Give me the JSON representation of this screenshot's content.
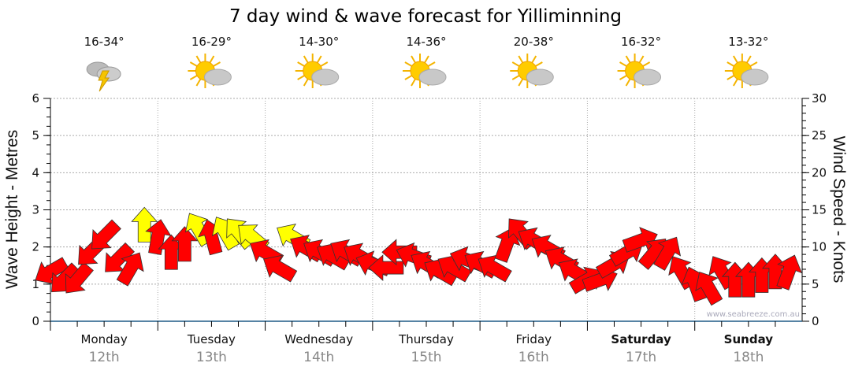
{
  "chart_data": {
    "type": "scatter",
    "title": "7 day wind & wave forecast for Yilliminning",
    "ylabel_left": "Wave Height - Metres",
    "ylabel_right": "Wind Speed - Knots",
    "ylim_left": [
      0,
      6
    ],
    "ylim_right": [
      0,
      30
    ],
    "left_ticks": [
      "0",
      "1",
      "2",
      "3",
      "4",
      "5",
      "6"
    ],
    "right_ticks": [
      "0",
      "5",
      "10",
      "15",
      "20",
      "25",
      "30"
    ],
    "grid": true,
    "watermark": "www.seabreeze.com.au",
    "colors": {
      "strong": "#ff0000",
      "light": "#ffff00"
    },
    "days": [
      {
        "day": "Monday",
        "date": "12th",
        "temp": "16-34°",
        "icon": "thunderstorm-icon",
        "bold": false
      },
      {
        "day": "Tuesday",
        "date": "13th",
        "temp": "16-29°",
        "icon": "partly-cloudy-icon",
        "bold": false
      },
      {
        "day": "Wednesday",
        "date": "14th",
        "temp": "14-30°",
        "icon": "partly-cloudy-icon",
        "bold": false
      },
      {
        "day": "Thursday",
        "date": "15th",
        "temp": "14-36°",
        "icon": "partly-cloudy-icon",
        "bold": false
      },
      {
        "day": "Friday",
        "date": "16th",
        "temp": "20-38°",
        "icon": "partly-cloudy-icon",
        "bold": false
      },
      {
        "day": "Saturday",
        "date": "17th",
        "temp": "16-32°",
        "icon": "partly-cloudy-icon",
        "bold": true
      },
      {
        "day": "Sunday",
        "date": "18th",
        "temp": "13-32°",
        "icon": "partly-cloudy-icon",
        "bold": true
      }
    ],
    "wind": [
      {
        "h": 0,
        "kn": 6.7,
        "dir": 240,
        "c": "strong"
      },
      {
        "h": 3,
        "kn": 5.6,
        "dir": 225,
        "c": "strong"
      },
      {
        "h": 6,
        "kn": 5.6,
        "dir": 220,
        "c": "strong"
      },
      {
        "h": 9,
        "kn": 9.3,
        "dir": 225,
        "c": "strong"
      },
      {
        "h": 12,
        "kn": 11.4,
        "dir": 225,
        "c": "strong"
      },
      {
        "h": 15,
        "kn": 8.3,
        "dir": 225,
        "c": "strong"
      },
      {
        "h": 18,
        "kn": 7.2,
        "dir": 30,
        "c": "strong"
      },
      {
        "h": 21,
        "kn": 13,
        "dir": 0,
        "c": "light"
      },
      {
        "h": 24,
        "kn": 11.4,
        "dir": 10,
        "c": "strong"
      },
      {
        "h": 27,
        "kn": 9.3,
        "dir": 0,
        "c": "strong"
      },
      {
        "h": 30,
        "kn": 10.4,
        "dir": 0,
        "c": "strong"
      },
      {
        "h": 33,
        "kn": 12.5,
        "dir": 330,
        "c": "light"
      },
      {
        "h": 36,
        "kn": 11.4,
        "dir": 345,
        "c": "strong"
      },
      {
        "h": 39,
        "kn": 12,
        "dir": 330,
        "c": "light"
      },
      {
        "h": 42,
        "kn": 12,
        "dir": 320,
        "c": "light"
      },
      {
        "h": 45,
        "kn": 11.4,
        "dir": 310,
        "c": "light"
      },
      {
        "h": 48,
        "kn": 9.3,
        "dir": 300,
        "c": "strong"
      },
      {
        "h": 51,
        "kn": 7.2,
        "dir": 300,
        "c": "strong"
      },
      {
        "h": 54,
        "kn": 11.4,
        "dir": 300,
        "c": "light"
      },
      {
        "h": 57,
        "kn": 9.9,
        "dir": 300,
        "c": "strong"
      },
      {
        "h": 60,
        "kn": 9.3,
        "dir": 300,
        "c": "strong"
      },
      {
        "h": 63,
        "kn": 8.8,
        "dir": 300,
        "c": "strong"
      },
      {
        "h": 66,
        "kn": 9.3,
        "dir": 300,
        "c": "strong"
      },
      {
        "h": 69,
        "kn": 8.8,
        "dir": 300,
        "c": "strong"
      },
      {
        "h": 72,
        "kn": 7.7,
        "dir": 290,
        "c": "strong"
      },
      {
        "h": 75,
        "kn": 7.2,
        "dir": 270,
        "c": "strong"
      },
      {
        "h": 78,
        "kn": 9.3,
        "dir": 270,
        "c": "strong"
      },
      {
        "h": 81,
        "kn": 8.8,
        "dir": 290,
        "c": "strong"
      },
      {
        "h": 84,
        "kn": 7.7,
        "dir": 300,
        "c": "strong"
      },
      {
        "h": 87,
        "kn": 6.7,
        "dir": 300,
        "c": "strong"
      },
      {
        "h": 90,
        "kn": 7.2,
        "dir": 300,
        "c": "strong"
      },
      {
        "h": 93,
        "kn": 8.3,
        "dir": 290,
        "c": "strong"
      },
      {
        "h": 96,
        "kn": 7.7,
        "dir": 300,
        "c": "strong"
      },
      {
        "h": 99,
        "kn": 7.2,
        "dir": 300,
        "c": "strong"
      },
      {
        "h": 102,
        "kn": 10.4,
        "dir": 20,
        "c": "strong"
      },
      {
        "h": 105,
        "kn": 12,
        "dir": 320,
        "c": "strong"
      },
      {
        "h": 108,
        "kn": 10.9,
        "dir": 300,
        "c": "strong"
      },
      {
        "h": 111,
        "kn": 9.9,
        "dir": 300,
        "c": "strong"
      },
      {
        "h": 114,
        "kn": 8.3,
        "dir": 300,
        "c": "strong"
      },
      {
        "h": 117,
        "kn": 6.7,
        "dir": 300,
        "c": "strong"
      },
      {
        "h": 120,
        "kn": 5.6,
        "dir": 60,
        "c": "strong"
      },
      {
        "h": 123,
        "kn": 5.6,
        "dir": 70,
        "c": "strong"
      },
      {
        "h": 126,
        "kn": 7.7,
        "dir": 60,
        "c": "strong"
      },
      {
        "h": 129,
        "kn": 9.3,
        "dir": 60,
        "c": "strong"
      },
      {
        "h": 132,
        "kn": 10.9,
        "dir": 70,
        "c": "strong"
      },
      {
        "h": 135,
        "kn": 9.3,
        "dir": 40,
        "c": "strong"
      },
      {
        "h": 138,
        "kn": 9.3,
        "dir": 30,
        "c": "strong"
      },
      {
        "h": 141,
        "kn": 6.7,
        "dir": 330,
        "c": "strong"
      },
      {
        "h": 144,
        "kn": 5.1,
        "dir": 340,
        "c": "strong"
      },
      {
        "h": 147,
        "kn": 4.6,
        "dir": 330,
        "c": "strong"
      },
      {
        "h": 150,
        "kn": 6.7,
        "dir": 330,
        "c": "strong"
      },
      {
        "h": 153,
        "kn": 5.6,
        "dir": 0,
        "c": "strong"
      },
      {
        "h": 156,
        "kn": 5.6,
        "dir": 0,
        "c": "strong"
      },
      {
        "h": 159,
        "kn": 6.2,
        "dir": 0,
        "c": "strong"
      },
      {
        "h": 162,
        "kn": 6.7,
        "dir": 0,
        "c": "strong"
      },
      {
        "h": 165,
        "kn": 6.7,
        "dir": 20,
        "c": "strong"
      }
    ]
  }
}
